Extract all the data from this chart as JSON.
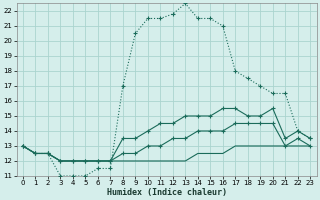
{
  "xlabel": "Humidex (Indice chaleur)",
  "background_color": "#d5eeeb",
  "grid_color": "#aad4cf",
  "line_color": "#1a6b5a",
  "xlim": [
    -0.5,
    23.5
  ],
  "ylim": [
    11,
    22.5
  ],
  "yticks": [
    11,
    12,
    13,
    14,
    15,
    16,
    17,
    18,
    19,
    20,
    21,
    22
  ],
  "xticks": [
    0,
    1,
    2,
    3,
    4,
    5,
    6,
    7,
    8,
    9,
    10,
    11,
    12,
    13,
    14,
    15,
    16,
    17,
    18,
    19,
    20,
    21,
    22,
    23
  ],
  "series": [
    [
      13,
      12.5,
      12.5,
      11,
      11,
      11,
      11.5,
      11.5,
      17,
      20.5,
      21.5,
      21.5,
      21.8,
      22.5,
      21.5,
      21.5,
      21,
      18,
      17.5,
      17,
      16.5,
      16.5,
      14,
      13.5
    ],
    [
      13,
      12.5,
      12.5,
      12,
      12,
      12,
      12,
      12,
      13.5,
      13.5,
      14,
      14.5,
      14.5,
      15,
      15,
      15,
      15.5,
      15.5,
      15,
      15,
      15.5,
      13.5,
      14,
      13.5
    ],
    [
      13,
      12.5,
      12.5,
      12,
      12,
      12,
      12,
      12,
      12.5,
      12.5,
      13,
      13,
      13.5,
      13.5,
      14,
      14,
      14,
      14.5,
      14.5,
      14.5,
      14.5,
      13,
      13.5,
      13
    ],
    [
      13,
      12.5,
      12.5,
      12,
      12,
      12,
      12,
      12,
      12,
      12,
      12,
      12,
      12,
      12,
      12.5,
      12.5,
      12.5,
      13,
      13,
      13,
      13,
      13,
      13,
      13
    ]
  ]
}
